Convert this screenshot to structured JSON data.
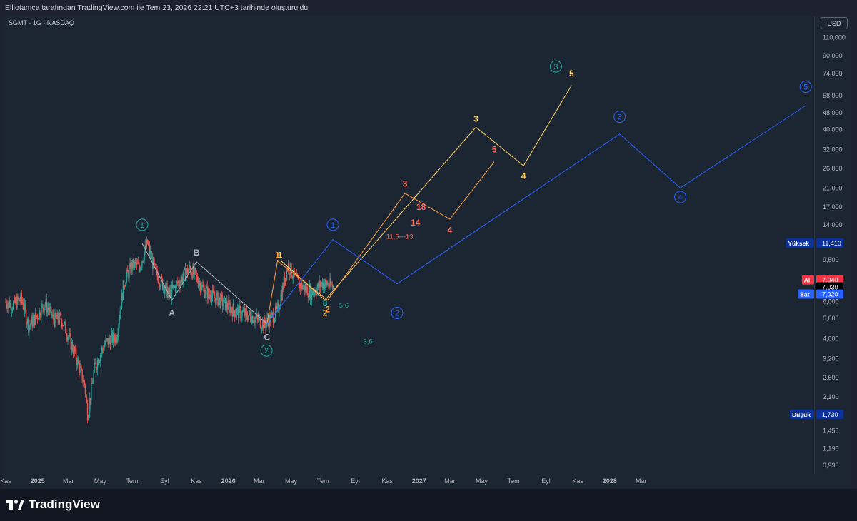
{
  "header": {
    "credit": "Elliotamca tarafından TradingView.com ile Tem 23, 2026 22:21 UTC+3 tarihinde oluşturuldu",
    "symbol": "SGMT · 1G · NASDAQ",
    "currency": "USD"
  },
  "footer": {
    "brand": "TradingView"
  },
  "chart_data": {
    "type": "candlestick",
    "scale": "log",
    "y_axis": {
      "ticks": [
        "110,000",
        "90,000",
        "74,000",
        "58,000",
        "48,000",
        "40,000",
        "32,000",
        "26,000",
        "21,000",
        "17,000",
        "14,000",
        "9,500",
        "6,000",
        "5,000",
        "4,000",
        "3,200",
        "2,600",
        "2,100",
        "1,450",
        "1,190",
        "0,990"
      ],
      "tick_values": [
        110,
        90,
        74,
        58,
        48,
        40,
        32,
        26,
        21,
        17,
        14,
        9.5,
        6.0,
        5.0,
        4.0,
        3.2,
        2.6,
        2.1,
        1.45,
        1.19,
        0.99
      ]
    },
    "x_axis": {
      "ticks": [
        "Kas",
        "2025",
        "Mar",
        "May",
        "Tem",
        "Eyl",
        "Kas",
        "2026",
        "Mar",
        "May",
        "Tem",
        "Eyl",
        "Kas",
        "2027",
        "Mar",
        "May",
        "Tem",
        "Eyl",
        "Kas",
        "2028",
        "Mar"
      ],
      "bold": [
        "2025",
        "2026",
        "2027",
        "2028"
      ],
      "start": "2024-11-01",
      "end": "2028-03-15"
    },
    "price_labels": [
      {
        "label": "Yüksek",
        "value": "11,410",
        "y": 11.41,
        "color": "#0c3299"
      },
      {
        "label": "Al",
        "value": "7,040",
        "y": 7.6,
        "color": "#f23645"
      },
      {
        "label": "",
        "value": "7,030",
        "y": 7.03,
        "color": "#000000"
      },
      {
        "label": "Sat",
        "value": "7,020",
        "y": 6.5,
        "color": "#2962ff"
      },
      {
        "label": "Düşük",
        "value": "1,730",
        "y": 1.73,
        "color": "#0c3299"
      }
    ],
    "price_path": [
      [
        "2024-11-01",
        6.0
      ],
      [
        "2024-11-15",
        5.8
      ],
      [
        "2024-12-01",
        6.2
      ],
      [
        "2024-12-15",
        4.6
      ],
      [
        "2025-01-01",
        5.2
      ],
      [
        "2025-01-15",
        5.9
      ],
      [
        "2025-02-01",
        4.9
      ],
      [
        "2025-02-15",
        5.0
      ],
      [
        "2025-03-01",
        4.1
      ],
      [
        "2025-03-15",
        3.3
      ],
      [
        "2025-04-01",
        2.4
      ],
      [
        "2025-04-07",
        1.73
      ],
      [
        "2025-04-20",
        2.9
      ],
      [
        "2025-05-10",
        3.8
      ],
      [
        "2025-06-01",
        4.1
      ],
      [
        "2025-06-15",
        7.4
      ],
      [
        "2025-07-01",
        9.0
      ],
      [
        "2025-07-15",
        8.8
      ],
      [
        "2025-07-30",
        11.4
      ],
      [
        "2025-08-15",
        8.2
      ],
      [
        "2025-09-10",
        6.5
      ],
      [
        "2025-10-01",
        7.6
      ],
      [
        "2025-10-20",
        8.7
      ],
      [
        "2025-11-15",
        6.8
      ],
      [
        "2025-12-15",
        6.1
      ],
      [
        "2026-01-15",
        5.4
      ],
      [
        "2026-02-15",
        5.1
      ],
      [
        "2026-03-12",
        4.7
      ],
      [
        "2026-04-05",
        5.4
      ],
      [
        "2026-04-25",
        9.0
      ],
      [
        "2026-05-15",
        7.3
      ],
      [
        "2026-06-10",
        6.6
      ],
      [
        "2026-07-01",
        7.4
      ],
      [
        "2026-07-23",
        7.03
      ]
    ],
    "annotations": [
      {
        "text": "1",
        "d": "2025-07-20",
        "y": 14.0,
        "color": "#26a69a",
        "circle": true
      },
      {
        "text": "2",
        "d": "2026-03-15",
        "y": 3.5,
        "color": "#26a69a",
        "circle": true
      },
      {
        "text": "3",
        "d": "2027-09-20",
        "y": 80.0,
        "color": "#26a69a",
        "circle": true
      },
      {
        "text": "1",
        "d": "2026-07-20",
        "y": 14.0,
        "color": "#2962ff",
        "circle": true
      },
      {
        "text": "2",
        "d": "2026-11-20",
        "y": 5.3,
        "color": "#2962ff",
        "circle": true
      },
      {
        "text": "3",
        "d": "2028-01-20",
        "y": 46.0,
        "color": "#2962ff",
        "circle": true
      },
      {
        "text": "4",
        "d": "2028-05-15",
        "y": 19.0,
        "color": "#2962ff",
        "circle": true
      },
      {
        "text": "5",
        "d": "2029-01-10",
        "y": 64.0,
        "color": "#2962ff",
        "circle": true
      },
      {
        "text": "A",
        "d": "2025-09-15",
        "y": 5.3,
        "color": "#b2b5be",
        "circle": false
      },
      {
        "text": "B",
        "d": "2025-11-01",
        "y": 10.3,
        "color": "#b2b5be",
        "circle": false
      },
      {
        "text": "C",
        "d": "2026-03-16",
        "y": 4.05,
        "color": "#b2b5be",
        "circle": false
      },
      {
        "text": "1",
        "d": "2026-04-05",
        "y": 10.0,
        "color": "#ff9f43",
        "circle": false
      },
      {
        "text": "1",
        "d": "2026-04-10",
        "y": 10.0,
        "color": "#ffd166",
        "circle": false
      },
      {
        "text": "2",
        "d": "2026-07-05",
        "y": 5.3,
        "color": "#ffd166",
        "circle": false
      },
      {
        "text": "2",
        "d": "2026-07-10",
        "y": 5.5,
        "color": "#ff9f43",
        "circle": false
      },
      {
        "text": "8",
        "d": "2026-07-05",
        "y": 5.9,
        "color": "#26a69a",
        "circle": false
      },
      {
        "text": "5,6",
        "d": "2026-08-10",
        "y": 5.8,
        "color": "#26a69a",
        "circle": false
      },
      {
        "text": "3,6",
        "d": "2026-09-25",
        "y": 3.9,
        "color": "#26a69a",
        "circle": false
      },
      {
        "text": "3",
        "d": "2026-12-05",
        "y": 22.0,
        "color": "#ff6b5b",
        "circle": false
      },
      {
        "text": "3",
        "d": "2027-04-20",
        "y": 45.0,
        "color": "#ffd166",
        "circle": false
      },
      {
        "text": "18",
        "d": "2027-01-05",
        "y": 17.0,
        "color": "#ff6b5b",
        "circle": false
      },
      {
        "text": "14",
        "d": "2026-12-25",
        "y": 14.3,
        "color": "#ff6b5b",
        "circle": false
      },
      {
        "text": "11,5---13",
        "d": "2026-11-25",
        "y": 12.4,
        "color": "#ff6b5b",
        "circle": false
      },
      {
        "text": "4",
        "d": "2027-03-01",
        "y": 13.2,
        "color": "#ff6b5b",
        "circle": false
      },
      {
        "text": "5",
        "d": "2027-05-25",
        "y": 32.0,
        "color": "#ff6b5b",
        "circle": false
      },
      {
        "text": "4",
        "d": "2027-07-20",
        "y": 24.0,
        "color": "#ffd166",
        "circle": false
      },
      {
        "text": "5",
        "d": "2027-10-20",
        "y": 74.0,
        "color": "#ffd166",
        "circle": false
      }
    ],
    "wave_lines": [
      {
        "name": "",
        "color": "#b2b5be",
        "points": [
          [
            "2025-07-20",
            11.4
          ],
          [
            "2025-09-15",
            6.1
          ],
          [
            "2025-11-01",
            9.3
          ],
          [
            "2026-03-16",
            4.7
          ]
        ]
      },
      {
        "name": "",
        "color": "#ff9f43",
        "points": [
          [
            "2026-03-16",
            4.7
          ],
          [
            "2026-04-05",
            9.4
          ],
          [
            "2026-07-10",
            6.1
          ],
          [
            "2026-12-05",
            19.8
          ],
          [
            "2027-03-01",
            14.9
          ],
          [
            "2027-05-25",
            28.0
          ]
        ]
      },
      {
        "name": "",
        "color": "#ffd166",
        "points": [
          [
            "2026-04-12",
            9.4
          ],
          [
            "2026-07-05",
            6.1
          ],
          [
            "2027-04-20",
            41.0
          ],
          [
            "2027-07-20",
            26.8
          ],
          [
            "2027-10-20",
            65.0
          ]
        ]
      },
      {
        "name": "",
        "color": "#2962ff",
        "points": [
          [
            "2026-03-16",
            4.7
          ],
          [
            "2026-07-20",
            11.9
          ],
          [
            "2026-11-20",
            7.3
          ],
          [
            "2028-01-20",
            38.0
          ],
          [
            "2028-05-15",
            21.0
          ],
          [
            "2029-01-10",
            52.0
          ]
        ]
      }
    ]
  }
}
